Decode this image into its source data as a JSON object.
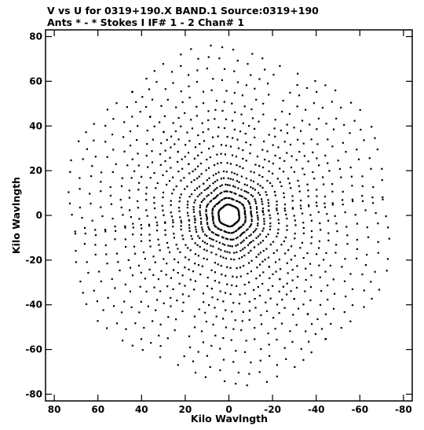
{
  "chart_data": {
    "type": "scatter",
    "title_line1": "V vs U for 0319+190.X BAND.1   Source:0319+190",
    "title_line2": "Ants * - *    Stokes I  IF# 1 - 2   Chan# 1",
    "xlabel": "Kilo Wavlngth",
    "ylabel": "Kilo Wavlngth",
    "xlim": [
      84,
      -84
    ],
    "ylim": [
      -83,
      83
    ],
    "x_ticks": [
      80,
      60,
      40,
      20,
      0,
      -20,
      -40,
      -60,
      -80
    ],
    "x_tick_labels": [
      "80",
      "60",
      "40",
      "20",
      "0",
      "-20",
      "-40",
      "-60",
      "-80"
    ],
    "y_ticks": [
      80,
      60,
      40,
      20,
      0,
      -20,
      -40,
      -60,
      -80
    ],
    "y_tick_labels": [
      "80",
      "60",
      "40",
      "20",
      "0",
      "-20",
      "-40",
      "-60",
      "-80"
    ],
    "grid": false,
    "marker_color": "#000000",
    "pattern": {
      "description_values_only": true,
      "arm_angles_deg": [
        22,
        80,
        145
      ],
      "rotation_sweep_deg": [
        -28,
        28
      ],
      "samples_per_track": 12,
      "track_radii": [
        5,
        8,
        11,
        14,
        17,
        20,
        24,
        28,
        32,
        36,
        40,
        44,
        48,
        52,
        57,
        62,
        67,
        72,
        77
      ]
    }
  }
}
